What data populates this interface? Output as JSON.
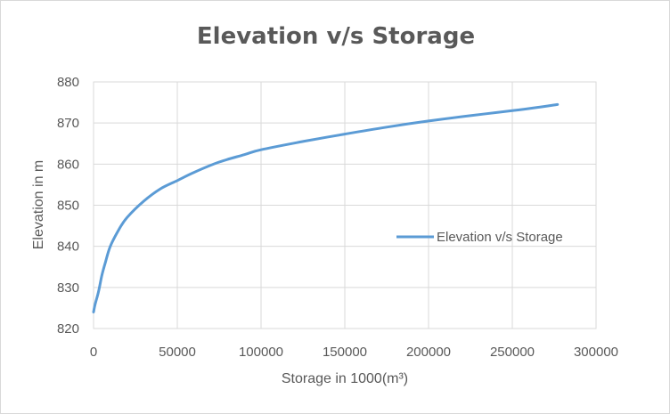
{
  "chart_data": {
    "type": "line",
    "title": "Elevation v/s Storage",
    "xlabel": "Storage in 1000(m³)",
    "ylabel": "Elevation in m",
    "xlim": [
      0,
      300000
    ],
    "ylim": [
      820,
      880
    ],
    "x_ticks": [
      "0",
      "50000",
      "100000",
      "150000",
      "200000",
      "250000",
      "300000"
    ],
    "y_ticks": [
      "820",
      "830",
      "840",
      "850",
      "860",
      "870",
      "880"
    ],
    "grid": true,
    "legend_position": "right",
    "series": [
      {
        "name": "Elevation v/s Storage",
        "color": "#5b9bd5",
        "x": [
          0,
          1000,
          3000,
          5000,
          7000,
          10000,
          15000,
          20000,
          30000,
          40000,
          50000,
          60000,
          75000,
          90000,
          100000,
          125000,
          150000,
          175000,
          200000,
          225000,
          250000,
          265000,
          277000
        ],
        "y": [
          824,
          826,
          829,
          833,
          836,
          840,
          844,
          847,
          851,
          854,
          856,
          858,
          860.5,
          862.3,
          863.5,
          865.5,
          867.3,
          869,
          870.5,
          871.8,
          873,
          873.8,
          874.5
        ]
      }
    ]
  }
}
